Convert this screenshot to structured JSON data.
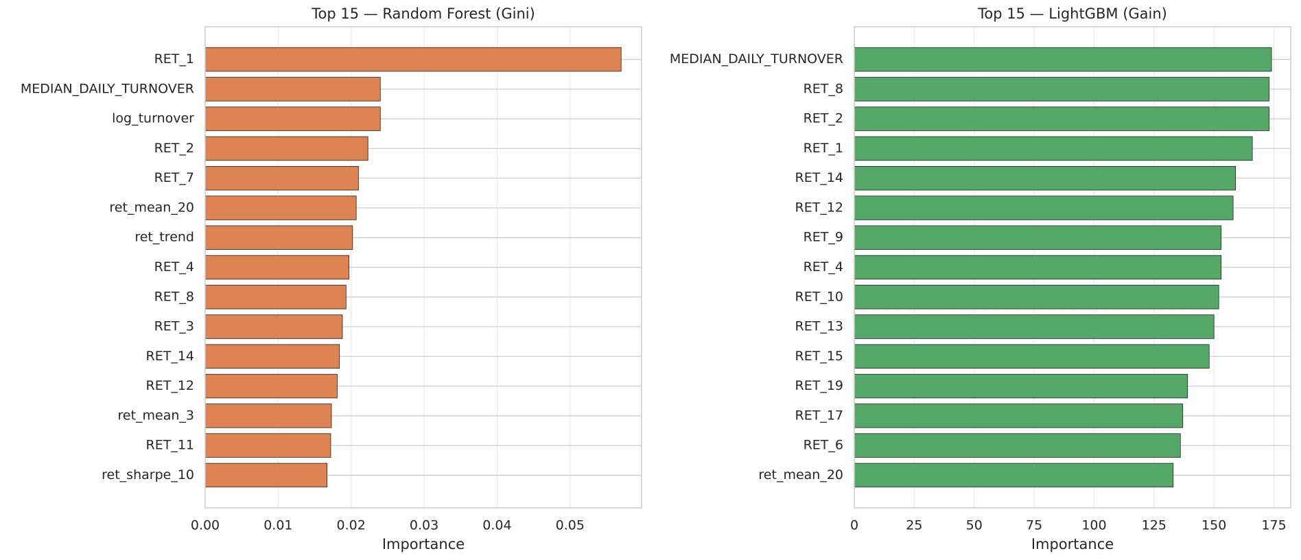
{
  "chart_data": [
    {
      "type": "bar",
      "orientation": "horizontal",
      "title": "Top 15 — Random Forest (Gini)",
      "x_label": "Importance",
      "categories": [
        "RET_1",
        "MEDIAN_DAILY_TURNOVER",
        "log_turnover",
        "RET_2",
        "RET_7",
        "ret_mean_20",
        "ret_trend",
        "RET_4",
        "RET_8",
        "RET_3",
        "RET_14",
        "RET_12",
        "ret_mean_3",
        "RET_11",
        "ret_sharpe_10"
      ],
      "values": [
        0.057,
        0.024,
        0.024,
        0.0223,
        0.021,
        0.0207,
        0.0202,
        0.0197,
        0.0193,
        0.0188,
        0.0184,
        0.0181,
        0.0173,
        0.0172,
        0.0167
      ],
      "color": "#dd8452",
      "xlim": [
        0,
        0.0598
      ],
      "xticks": [
        {
          "value": 0,
          "label": "0.00"
        },
        {
          "value": 0.01,
          "label": "0.01"
        },
        {
          "value": 0.02,
          "label": "0.02"
        },
        {
          "value": 0.03,
          "label": "0.03"
        },
        {
          "value": 0.04,
          "label": "0.04"
        },
        {
          "value": 0.05,
          "label": "0.05"
        }
      ],
      "grid": true
    },
    {
      "type": "bar",
      "orientation": "horizontal",
      "title": "Top 15 — LightGBM (Gain)",
      "x_label": "Importance",
      "categories": [
        "MEDIAN_DAILY_TURNOVER",
        "RET_8",
        "RET_2",
        "RET_1",
        "RET_14",
        "RET_12",
        "RET_9",
        "RET_4",
        "RET_10",
        "RET_13",
        "RET_15",
        "RET_19",
        "RET_17",
        "RET_6",
        "ret_mean_20"
      ],
      "values": [
        174,
        173,
        173,
        166,
        159,
        158,
        153,
        153,
        152,
        150,
        148,
        139,
        137,
        136,
        133
      ],
      "color": "#55a868",
      "xlim": [
        0,
        182
      ],
      "xticks": [
        0,
        25,
        50,
        75,
        100,
        125,
        150,
        175
      ],
      "grid": true
    }
  ]
}
